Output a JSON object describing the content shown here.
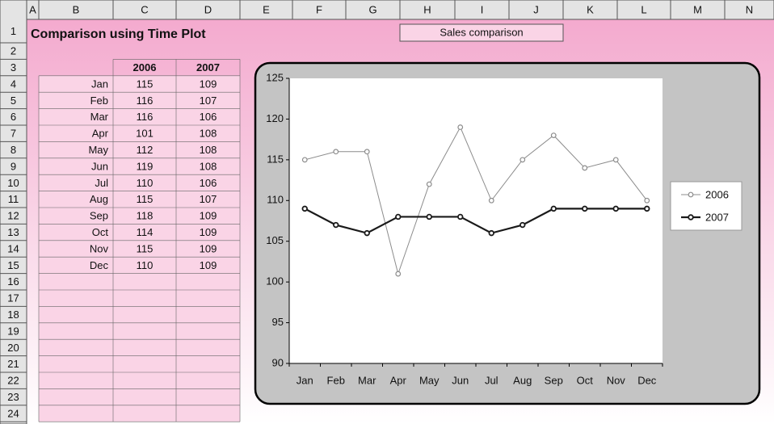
{
  "sheet": {
    "columns": [
      "A",
      "B",
      "C",
      "D",
      "E",
      "F",
      "G",
      "H",
      "I",
      "J",
      "K",
      "L",
      "M",
      "N"
    ],
    "rows": [
      1,
      2,
      3,
      4,
      5,
      6,
      7,
      8,
      9,
      10,
      11,
      12,
      13,
      14,
      15,
      16,
      17,
      18,
      19,
      20,
      21,
      22,
      23,
      24
    ],
    "title": "Comparison using Time Plot"
  },
  "chart_data": {
    "type": "line",
    "title": "Sales comparison",
    "categories": [
      "Jan",
      "Feb",
      "Mar",
      "Apr",
      "May",
      "Jun",
      "Jul",
      "Aug",
      "Sep",
      "Oct",
      "Nov",
      "Dec"
    ],
    "series": [
      {
        "name": "2006",
        "color": "#8c8c8c",
        "values": [
          115,
          116,
          116,
          101,
          112,
          119,
          110,
          115,
          118,
          114,
          115,
          110
        ]
      },
      {
        "name": "2007",
        "color": "#1a1a1a",
        "values": [
          109,
          107,
          106,
          108,
          108,
          108,
          106,
          107,
          109,
          109,
          109,
          109
        ]
      }
    ],
    "ylim": [
      90,
      125
    ],
    "yticks": [
      90,
      95,
      100,
      105,
      110,
      115,
      120,
      125
    ],
    "legend": "right"
  }
}
